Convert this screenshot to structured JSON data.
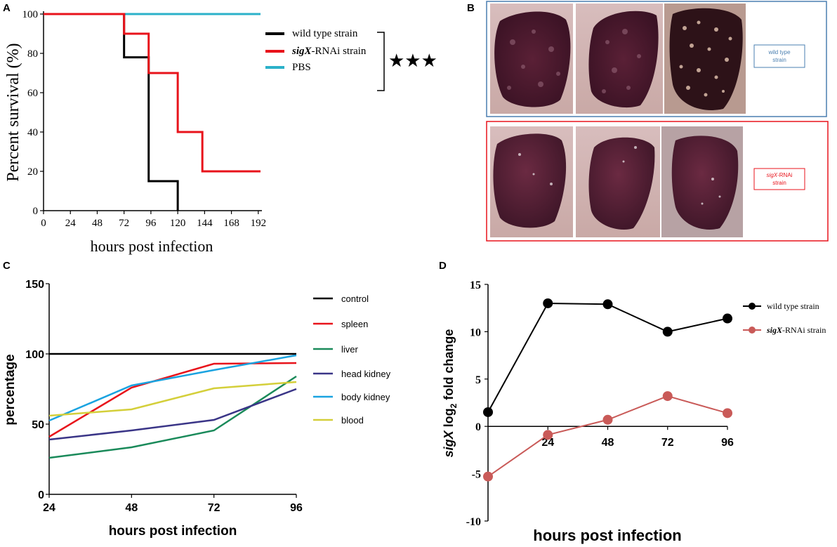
{
  "chart_data": [
    {
      "panel": "A",
      "type": "line",
      "subtype": "step",
      "xlabel": "hours post infection",
      "ylabel": "Percent survival (%)",
      "xlim": [
        0,
        194
      ],
      "ylim": [
        0,
        100
      ],
      "xticks": [
        0,
        24,
        48,
        72,
        96,
        120,
        144,
        168,
        192
      ],
      "yticks": [
        0,
        20,
        40,
        60,
        80,
        100
      ],
      "series": [
        {
          "name": "wild type strain",
          "color": "#000000",
          "x": [
            0,
            72,
            72,
            94,
            94,
            120,
            120
          ],
          "y": [
            100,
            100,
            78,
            78,
            15,
            15,
            0
          ]
        },
        {
          "name_italic": "sigX",
          "name": "-RNAi strain",
          "color": "#e8131b",
          "x": [
            0,
            72,
            72,
            94,
            94,
            120,
            120,
            142,
            142,
            194
          ],
          "y": [
            100,
            100,
            90,
            90,
            70,
            70,
            40,
            40,
            20,
            20
          ]
        },
        {
          "name": "PBS",
          "color": "#2bb1c9",
          "x": [
            0,
            194
          ],
          "y": [
            100,
            100
          ]
        }
      ],
      "significance": "★★★"
    },
    {
      "panel": "B",
      "type": "image",
      "rows": [
        {
          "label": "wild type strain",
          "color": "#4a7fb0"
        },
        {
          "label_italic": "sigX",
          "label": "-RNAi strain",
          "color": "#e8131b"
        }
      ]
    },
    {
      "panel": "C",
      "type": "line",
      "xlabel": "hours post infection",
      "ylabel": "percentage",
      "ylim": [
        0,
        150
      ],
      "categories": [
        24,
        48,
        72,
        96
      ],
      "xticks": [
        "24",
        "48",
        "72",
        "96"
      ],
      "yticks": [
        0,
        50,
        100,
        150
      ],
      "series": [
        {
          "name": "control",
          "color": "#000000",
          "values": [
            100,
            100,
            100,
            100
          ]
        },
        {
          "name": "spleen",
          "color": "#e8131b",
          "values": [
            41,
            76,
            93,
            93.5
          ]
        },
        {
          "name": "liver",
          "color": "#1a8a5a",
          "values": [
            26,
            33.5,
            45.5,
            84
          ]
        },
        {
          "name": "head kidney",
          "color": "#3a3587",
          "values": [
            39,
            45.5,
            53,
            75
          ]
        },
        {
          "name": "body kidney",
          "color": "#1aa3e0",
          "values": [
            52.5,
            77.5,
            88.5,
            99
          ]
        },
        {
          "name": "blood",
          "color": "#d4cf3a",
          "values": [
            56,
            60.5,
            75.5,
            80
          ]
        }
      ]
    },
    {
      "panel": "D",
      "type": "line",
      "xlabel": "hours post infection",
      "ylabel_italic": "sigX",
      "ylabel_mid": " log",
      "ylabel_sub": "2",
      "ylabel_end": " fold change",
      "ylim": [
        -10,
        15
      ],
      "xlim": [
        0,
        96
      ],
      "xticks": [
        "24",
        "48",
        "72",
        "96"
      ],
      "yticks": [
        "-10",
        "-5",
        "0",
        "5",
        "10",
        "15"
      ],
      "series": [
        {
          "name": "wild type strain",
          "color": "#000000",
          "x": [
            0,
            24,
            48,
            72,
            96
          ],
          "y": [
            1.5,
            13.0,
            12.9,
            10.0,
            11.4
          ]
        },
        {
          "name_italic": "sigX",
          "name": "-RNAi strain",
          "color": "#c95a58",
          "x": [
            0,
            24,
            48,
            72,
            96
          ],
          "y": [
            -5.3,
            -0.9,
            0.7,
            3.2,
            1.4
          ]
        }
      ]
    }
  ],
  "panel_labels": [
    "A",
    "B",
    "C",
    "D"
  ]
}
